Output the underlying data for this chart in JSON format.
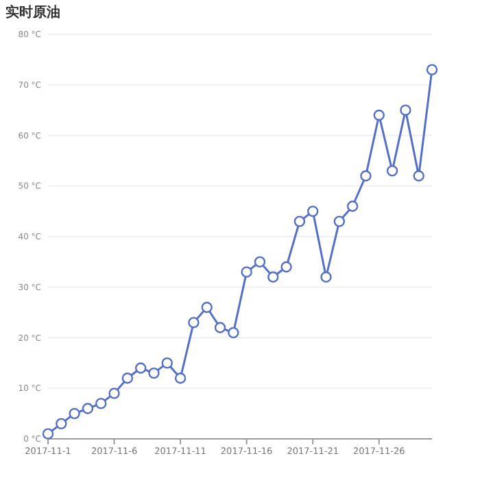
{
  "chart_data": {
    "type": "line",
    "title": "实时原油",
    "categories": [
      "2017-11-1",
      null,
      null,
      null,
      null,
      "2017-11-6",
      null,
      null,
      null,
      null,
      "2017-11-11",
      null,
      null,
      null,
      null,
      "2017-11-16",
      null,
      null,
      null,
      null,
      "2017-11-21",
      null,
      null,
      null,
      null,
      "2017-11-26",
      null,
      null,
      null,
      null
    ],
    "series": [
      {
        "color": "#5470c6",
        "values": [
          1,
          3,
          5,
          6,
          7,
          9,
          12,
          14,
          13,
          15,
          12,
          23,
          26,
          22,
          21,
          33,
          35,
          32,
          34,
          43,
          45,
          32,
          43,
          46,
          52,
          64,
          53,
          65,
          52,
          73
        ]
      }
    ],
    "ylim": [
      0,
      80
    ],
    "yticks": [
      {
        "value": 0,
        "label": "0 °C"
      },
      {
        "value": 10,
        "label": "10 °C"
      },
      {
        "value": 20,
        "label": "20 °C"
      },
      {
        "value": 30,
        "label": "30 °C"
      },
      {
        "value": 40,
        "label": "40 °C"
      },
      {
        "value": 50,
        "label": "50 °C"
      },
      {
        "value": 60,
        "label": "60 °C"
      },
      {
        "value": 70,
        "label": "70 °C"
      },
      {
        "value": 80,
        "label": "80 °C"
      }
    ],
    "grid": "y",
    "marker": "circle",
    "line_style": "solid"
  }
}
